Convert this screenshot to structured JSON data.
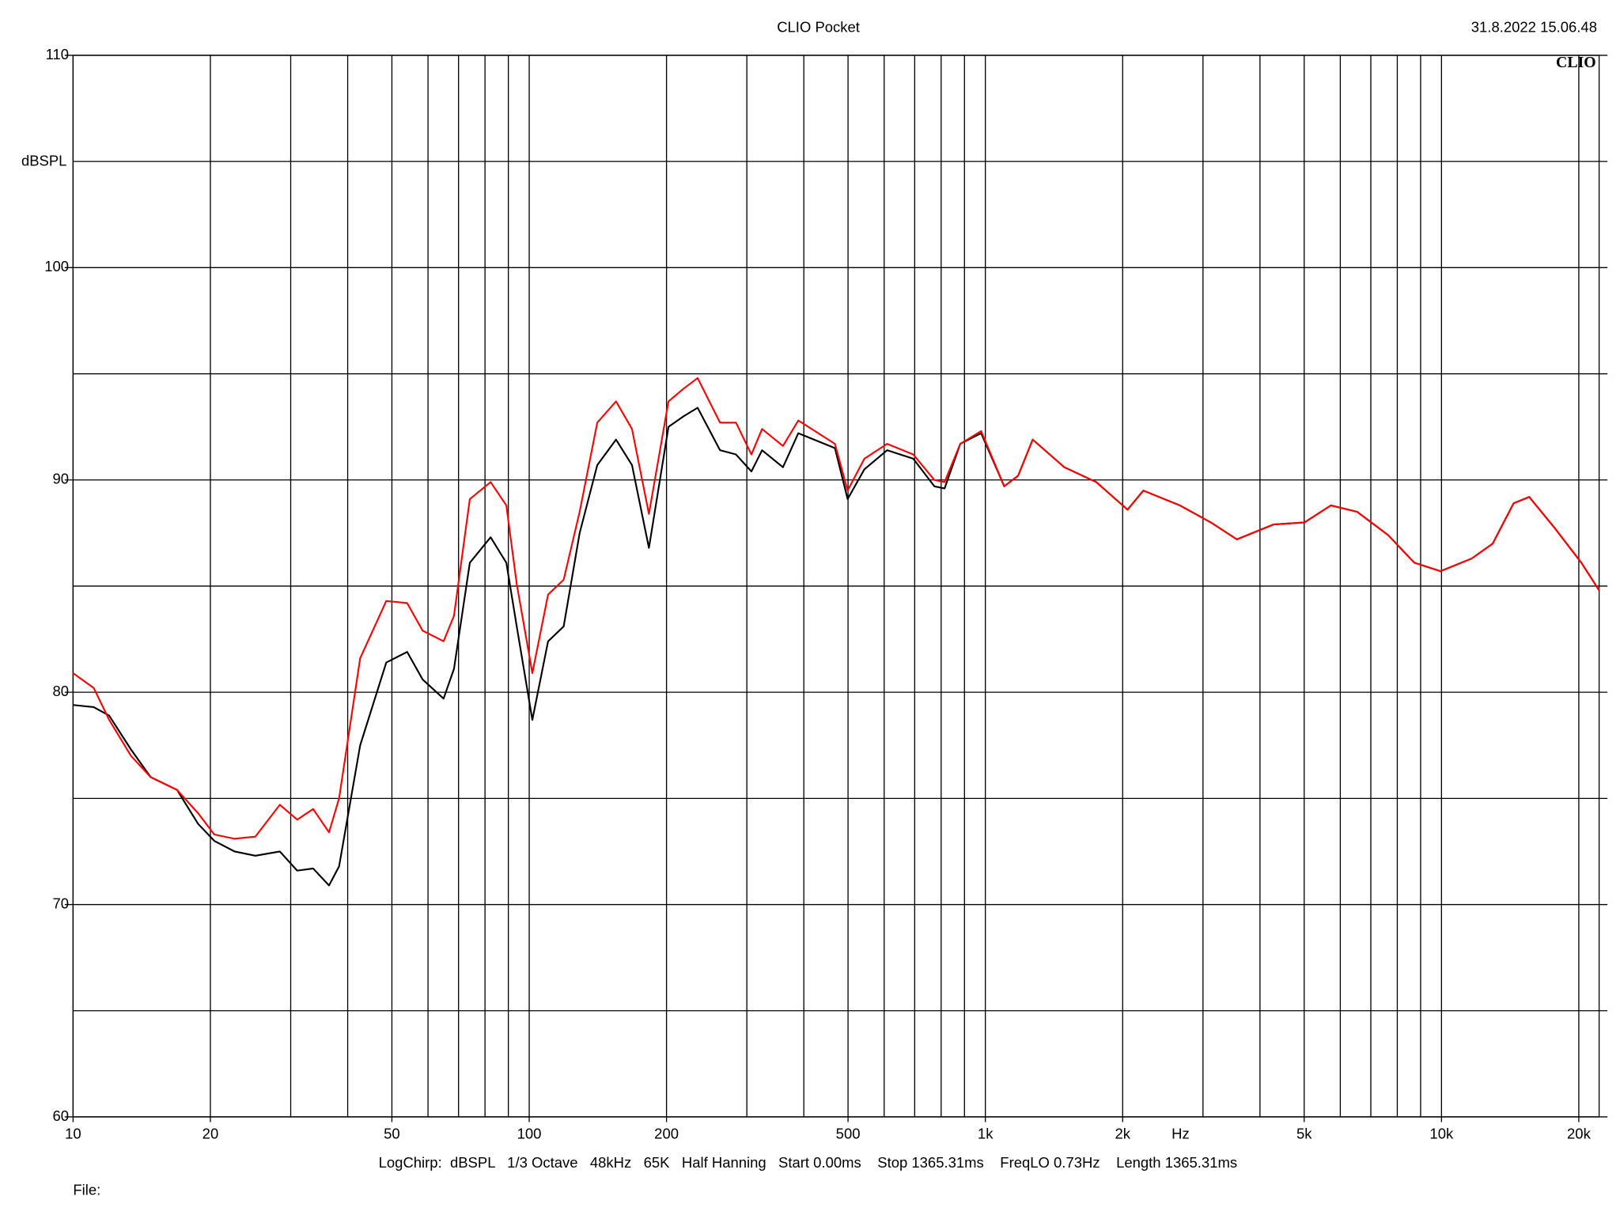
{
  "chart_data": {
    "type": "line",
    "title": "CLIO Pocket",
    "timestamp": "31.8.2022 15.06.48",
    "logo": "CLIO",
    "ylabel": "dBSPL",
    "xlabel": "Hz",
    "info": "LogChirp:  dBSPL   1/3 Octave   48kHz   65K   Half Hanning   Start 0.00ms    Stop 1365.31ms    FreqLO 0.73Hz    Length 1365.31ms",
    "file_label": "File:",
    "log_x": true,
    "grid": true,
    "xlim": [
      10,
      22160
    ],
    "ylim": [
      60,
      110
    ],
    "yticks": [
      60,
      70,
      80,
      90,
      100,
      110
    ],
    "yticks_minor": [
      65,
      75,
      85,
      95,
      105
    ],
    "xticks": [
      10,
      20,
      50,
      100,
      200,
      500,
      {
        "value": 1000,
        "label": "1k"
      },
      {
        "value": 2000,
        "label": "2k"
      },
      {
        "value": 5000,
        "label": "5k"
      },
      {
        "value": 10000,
        "label": "10k"
      },
      {
        "value": 20000,
        "label": "20k"
      }
    ],
    "xticks_minor": [
      30,
      40,
      60,
      70,
      80,
      90,
      300,
      400,
      600,
      700,
      800,
      900,
      3000,
      4000,
      6000,
      7000,
      8000,
      9000
    ],
    "x": [
      10,
      11.1,
      12,
      13.4,
      14.8,
      16.9,
      18.8,
      20.4,
      22.6,
      25.1,
      28.4,
      31,
      33.6,
      36.4,
      38.3,
      42.6,
      48.6,
      54,
      58.4,
      64.9,
      68.4,
      74.1,
      82.3,
      89.1,
      93.9,
      101.6,
      110,
      119,
      129,
      141,
      155,
      168,
      183,
      202,
      218,
      234,
      262,
      284,
      307,
      324,
      360,
      389,
      468,
      499,
      543,
      609,
      695,
      773,
      814,
      881,
      979,
      1100,
      1180,
      1270,
      1490,
      1750,
      2050,
      2220,
      2670,
      3120,
      3560,
      4280,
      5010,
      5720,
      6530,
      7640,
      8720,
      9950,
      11650,
      12950,
      14390,
      15570,
      17760,
      20260,
      22160
    ],
    "series": [
      {
        "name": "black",
        "color": "#000000",
        "values": [
          79.4,
          79.3,
          78.9,
          77.3,
          76.0,
          75.4,
          73.8,
          73.0,
          72.5,
          72.3,
          72.5,
          71.6,
          71.7,
          70.9,
          71.8,
          77.5,
          81.4,
          81.9,
          80.6,
          79.7,
          81.1,
          86.1,
          87.3,
          86.1,
          83.1,
          78.7,
          82.4,
          83.1,
          87.5,
          90.7,
          91.9,
          90.7,
          86.8,
          92.5,
          93.0,
          93.4,
          91.4,
          91.2,
          90.4,
          91.4,
          90.6,
          92.2,
          91.5,
          89.1,
          90.5,
          91.4,
          91.0,
          89.7,
          89.6,
          91.7,
          92.2,
          89.7,
          90.2,
          91.9,
          90.6,
          89.9,
          88.6,
          89.5,
          88.8,
          88.0,
          87.2,
          87.9,
          88.0,
          88.8,
          88.5,
          87.4,
          86.1,
          85.7,
          86.3,
          87.0,
          88.9,
          89.2,
          87.7,
          86.1,
          84.8
        ]
      },
      {
        "name": "red",
        "color": "#ff0000",
        "values": [
          80.9,
          80.2,
          78.7,
          77.0,
          76.0,
          75.4,
          74.3,
          73.3,
          73.1,
          73.2,
          74.7,
          74.0,
          74.5,
          73.4,
          75.0,
          81.6,
          84.3,
          84.2,
          82.9,
          82.4,
          83.6,
          89.1,
          89.9,
          88.8,
          85.1,
          80.9,
          84.6,
          85.3,
          88.5,
          92.7,
          93.7,
          92.4,
          88.4,
          93.7,
          94.3,
          94.8,
          92.7,
          92.7,
          91.2,
          92.4,
          91.6,
          92.8,
          91.7,
          89.5,
          91.0,
          91.7,
          91.2,
          90.0,
          89.9,
          91.7,
          92.3,
          89.7,
          90.2,
          91.9,
          90.6,
          89.9,
          88.6,
          89.5,
          88.8,
          88.0,
          87.2,
          87.9,
          88.0,
          88.8,
          88.5,
          87.4,
          86.1,
          85.7,
          86.3,
          87.0,
          88.9,
          89.2,
          87.7,
          86.1,
          84.8
        ]
      }
    ]
  }
}
